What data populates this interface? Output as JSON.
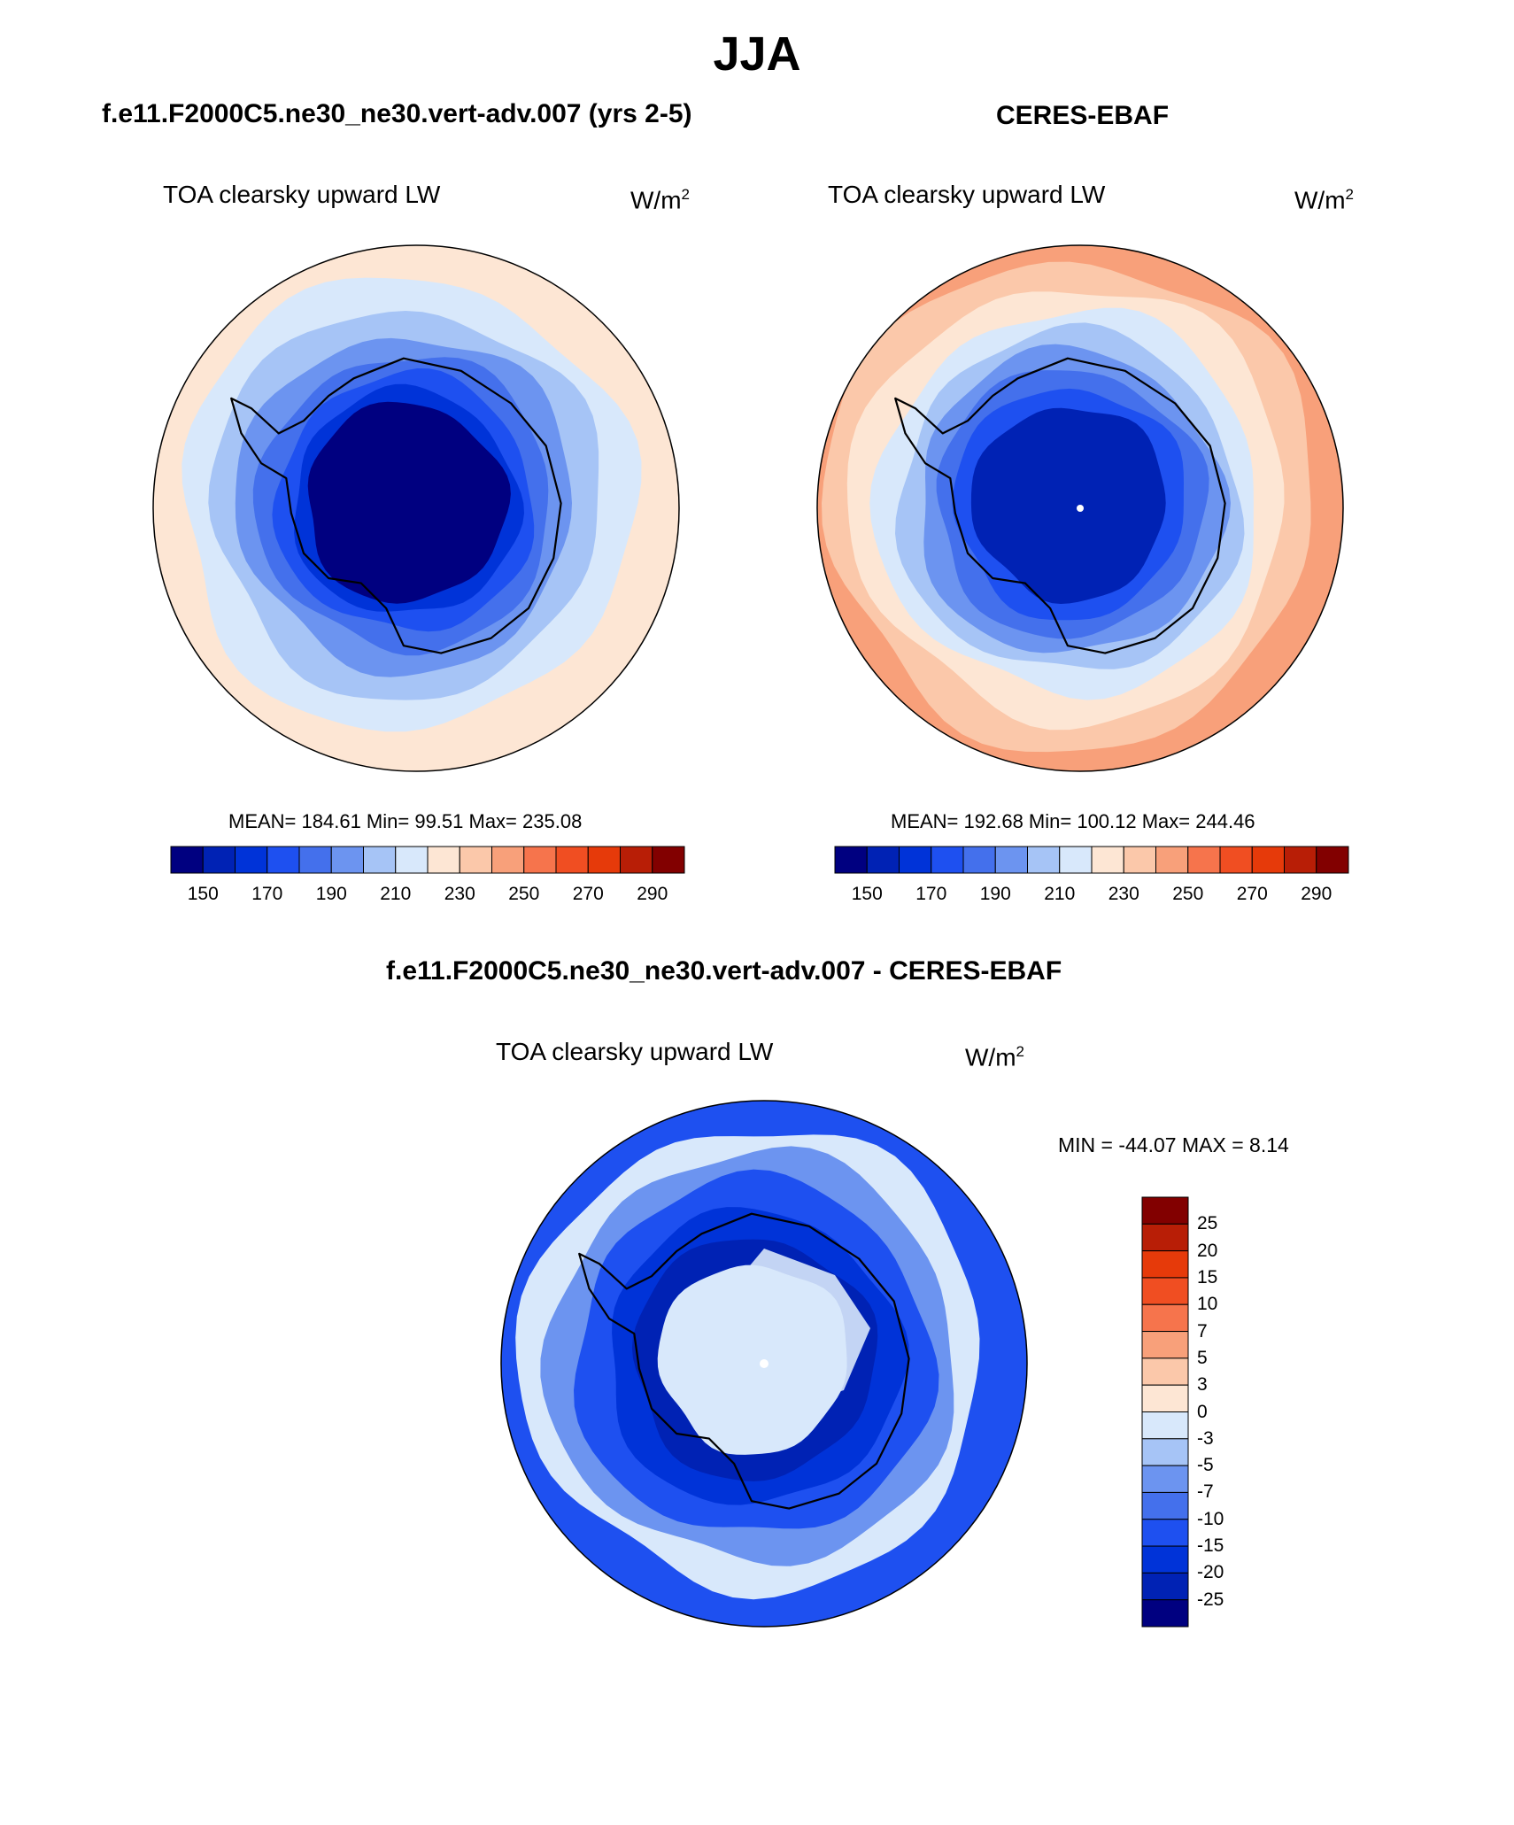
{
  "page": {
    "season": "JJA",
    "variable": "TOA clearsky upward LW",
    "unit_base": "W/m",
    "unit_exp": "2"
  },
  "panels": {
    "model": {
      "title": "f.e11.F2000C5.ne30_ne30.vert-adv.007 (yrs 2-5)",
      "stats": "MEAN= 184.61  Min=  99.51  Max= 235.08"
    },
    "obs": {
      "title": "CERES-EBAF",
      "stats": "MEAN= 192.68  Min= 100.12  Max= 244.46"
    },
    "diff": {
      "title": "f.e11.F2000C5.ne30_ne30.vert-adv.007 - CERES-EBAF",
      "stats": "MIN = -44.07 MAX =   8.14"
    }
  },
  "chart_data": [
    {
      "type": "heatmap",
      "projection": "south-polar-stereographic",
      "title": "f.e11.F2000C5.ne30_ne30.vert-adv.007 (yrs 2-5)",
      "variable": "TOA clearsky upward LW",
      "unit": "W/m^2",
      "mean": 184.61,
      "min": 99.51,
      "max": 235.08,
      "colorbar": {
        "orientation": "horizontal",
        "levels": [
          150,
          160,
          170,
          180,
          190,
          200,
          210,
          220,
          230,
          240,
          250,
          260,
          270,
          280,
          290
        ],
        "tick_labels": [
          "150",
          "170",
          "190",
          "210",
          "230",
          "250",
          "270",
          "290"
        ],
        "colors": [
          "#000080",
          "#0022b4",
          "#0033d8",
          "#1e50f0",
          "#4470ec",
          "#6c94f0",
          "#a6c4f6",
          "#d8e8fb",
          "#fde6d4",
          "#fbc8aa",
          "#f8a07a",
          "#f6744c",
          "#f04e22",
          "#e63a0a",
          "#b81e06",
          "#820000"
        ]
      },
      "rings": [
        {
          "r": 1.0,
          "value": 225
        },
        {
          "r": 0.86,
          "value": 215
        },
        {
          "r": 0.74,
          "value": 205
        },
        {
          "r": 0.64,
          "value": 195
        },
        {
          "r": 0.56,
          "value": 185
        },
        {
          "r": 0.49,
          "value": 175
        },
        {
          "r": 0.43,
          "value": 165
        },
        {
          "r": 0.38,
          "value": 145
        }
      ]
    },
    {
      "type": "heatmap",
      "projection": "south-polar-stereographic",
      "title": "CERES-EBAF",
      "variable": "TOA clearsky upward LW",
      "unit": "W/m^2",
      "mean": 192.68,
      "min": 100.12,
      "max": 244.46,
      "colorbar": {
        "orientation": "horizontal",
        "levels": [
          150,
          160,
          170,
          180,
          190,
          200,
          210,
          220,
          230,
          240,
          250,
          260,
          270,
          280,
          290
        ],
        "tick_labels": [
          "150",
          "170",
          "190",
          "210",
          "230",
          "250",
          "270",
          "290"
        ],
        "colors": [
          "#000080",
          "#0022b4",
          "#0033d8",
          "#1e50f0",
          "#4470ec",
          "#6c94f0",
          "#a6c4f6",
          "#d8e8fb",
          "#fde6d4",
          "#fbc8aa",
          "#f8a07a",
          "#f6744c",
          "#f04e22",
          "#e63a0a",
          "#b81e06",
          "#820000"
        ]
      },
      "rings": [
        {
          "r": 1.0,
          "value": 245
        },
        {
          "r": 0.93,
          "value": 235
        },
        {
          "r": 0.83,
          "value": 225
        },
        {
          "r": 0.73,
          "value": 215
        },
        {
          "r": 0.65,
          "value": 205
        },
        {
          "r": 0.58,
          "value": 195
        },
        {
          "r": 0.51,
          "value": 185
        },
        {
          "r": 0.44,
          "value": 175
        },
        {
          "r": 0.37,
          "value": 155
        }
      ]
    },
    {
      "type": "heatmap",
      "projection": "south-polar-stereographic",
      "title": "f.e11.F2000C5.ne30_ne30.vert-adv.007 - CERES-EBAF",
      "variable": "TOA clearsky upward LW",
      "unit": "W/m^2",
      "min": -44.07,
      "max": 8.14,
      "colorbar": {
        "orientation": "vertical",
        "levels": [
          -25,
          -20,
          -15,
          -10,
          -7,
          -5,
          -3,
          0,
          3,
          5,
          7,
          10,
          15,
          20,
          25
        ],
        "tick_labels": [
          "25",
          "20",
          "15",
          "10",
          "7",
          "5",
          "3",
          "0",
          "-3",
          "-5",
          "-7",
          "-10",
          "-15",
          "-20",
          "-25"
        ],
        "colors": [
          "#000080",
          "#0022b4",
          "#0033d8",
          "#1e50f0",
          "#4470ec",
          "#6c94f0",
          "#a6c4f6",
          "#d8e8fb",
          "#fde6d4",
          "#fbc8aa",
          "#f8a07a",
          "#f6744c",
          "#f04e22",
          "#e63a0a",
          "#b81e06",
          "#820000"
        ]
      },
      "rings": [
        {
          "r": 1.0,
          "value": -12
        },
        {
          "r": 0.88,
          "value": -2
        },
        {
          "r": 0.78,
          "value": -6
        },
        {
          "r": 0.68,
          "value": -12
        },
        {
          "r": 0.56,
          "value": -17
        },
        {
          "r": 0.46,
          "value": -22
        },
        {
          "r": 0.36,
          "value": -2
        }
      ]
    }
  ]
}
